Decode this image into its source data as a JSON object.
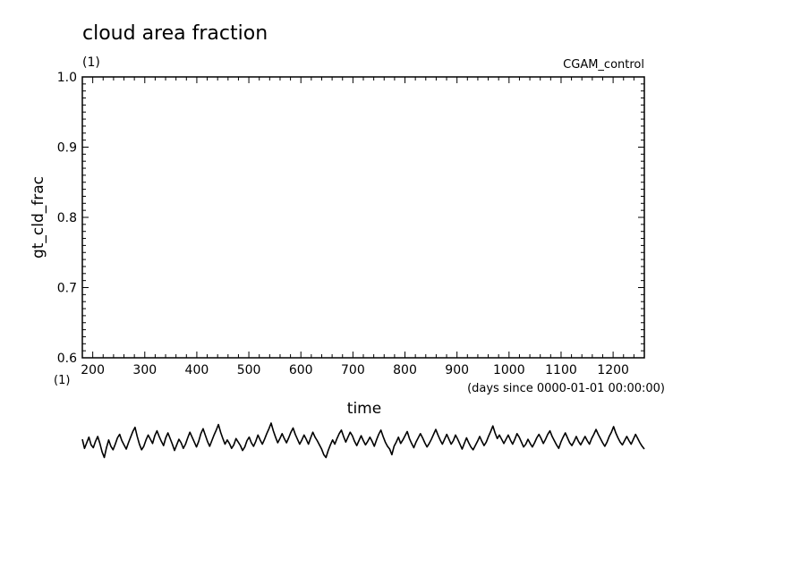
{
  "chart_data": {
    "type": "line",
    "title": "cloud area fraction",
    "units": "(1)",
    "x_units": "(1)",
    "experiment": "CGAM_control",
    "ylabel": "gt_cld_frac",
    "xlabel": "time",
    "xlabel_note": "(days since 0000-01-01 00:00:00)",
    "xlim": [
      180,
      1260
    ],
    "ylim": [
      0.6,
      1.0
    ],
    "x_ticks": [
      200,
      300,
      400,
      500,
      600,
      700,
      800,
      900,
      1000,
      1100,
      1200
    ],
    "x_tick_labels": [
      "200",
      "300",
      "400",
      "500",
      "600",
      "700",
      "800",
      "900",
      "1000",
      "1100",
      "1200"
    ],
    "y_ticks": [
      0.6,
      0.7,
      0.8,
      0.9,
      1.0
    ],
    "y_tick_labels": [
      "0.6",
      "0.7",
      "0.8",
      "0.9",
      "1.0"
    ],
    "series": [
      {
        "color": "#000000",
        "x_start": 180,
        "x_end": 1260,
        "values": [
          0.484,
          0.471,
          0.479,
          0.487,
          0.476,
          0.472,
          0.481,
          0.488,
          0.478,
          0.466,
          0.458,
          0.472,
          0.483,
          0.474,
          0.469,
          0.477,
          0.486,
          0.491,
          0.482,
          0.476,
          0.47,
          0.479,
          0.487,
          0.495,
          0.501,
          0.488,
          0.477,
          0.469,
          0.474,
          0.483,
          0.49,
          0.484,
          0.478,
          0.489,
          0.496,
          0.488,
          0.481,
          0.475,
          0.486,
          0.493,
          0.485,
          0.477,
          0.468,
          0.476,
          0.484,
          0.479,
          0.471,
          0.477,
          0.486,
          0.494,
          0.487,
          0.48,
          0.473,
          0.481,
          0.492,
          0.499,
          0.49,
          0.481,
          0.474,
          0.482,
          0.49,
          0.497,
          0.505,
          0.494,
          0.485,
          0.477,
          0.483,
          0.478,
          0.471,
          0.476,
          0.485,
          0.48,
          0.475,
          0.468,
          0.473,
          0.482,
          0.487,
          0.479,
          0.474,
          0.481,
          0.49,
          0.483,
          0.477,
          0.484,
          0.492,
          0.499,
          0.507,
          0.496,
          0.487,
          0.479,
          0.485,
          0.492,
          0.485,
          0.479,
          0.486,
          0.494,
          0.5,
          0.491,
          0.484,
          0.477,
          0.483,
          0.49,
          0.484,
          0.477,
          0.486,
          0.494,
          0.487,
          0.482,
          0.476,
          0.47,
          0.462,
          0.458,
          0.468,
          0.476,
          0.483,
          0.477,
          0.485,
          0.492,
          0.497,
          0.488,
          0.48,
          0.487,
          0.494,
          0.489,
          0.481,
          0.475,
          0.482,
          0.489,
          0.482,
          0.476,
          0.481,
          0.487,
          0.481,
          0.474,
          0.483,
          0.491,
          0.497,
          0.488,
          0.48,
          0.474,
          0.47,
          0.462,
          0.474,
          0.48,
          0.487,
          0.478,
          0.483,
          0.489,
          0.495,
          0.485,
          0.478,
          0.472,
          0.48,
          0.486,
          0.492,
          0.486,
          0.479,
          0.473,
          0.478,
          0.484,
          0.491,
          0.498,
          0.49,
          0.483,
          0.477,
          0.484,
          0.491,
          0.484,
          0.477,
          0.482,
          0.49,
          0.484,
          0.477,
          0.47,
          0.478,
          0.486,
          0.479,
          0.473,
          0.469,
          0.475,
          0.481,
          0.488,
          0.481,
          0.475,
          0.48,
          0.488,
          0.495,
          0.503,
          0.493,
          0.485,
          0.49,
          0.484,
          0.478,
          0.484,
          0.49,
          0.483,
          0.477,
          0.484,
          0.492,
          0.487,
          0.48,
          0.473,
          0.477,
          0.484,
          0.478,
          0.473,
          0.479,
          0.486,
          0.491,
          0.485,
          0.478,
          0.484,
          0.491,
          0.496,
          0.488,
          0.482,
          0.476,
          0.471,
          0.48,
          0.487,
          0.493,
          0.486,
          0.479,
          0.475,
          0.481,
          0.488,
          0.481,
          0.476,
          0.482,
          0.488,
          0.482,
          0.477,
          0.485,
          0.491,
          0.498,
          0.491,
          0.485,
          0.479,
          0.474,
          0.48,
          0.488,
          0.494,
          0.502,
          0.493,
          0.486,
          0.48,
          0.476,
          0.482,
          0.488,
          0.482,
          0.477,
          0.484,
          0.491,
          0.485,
          0.479,
          0.474,
          0.47
        ]
      }
    ]
  }
}
